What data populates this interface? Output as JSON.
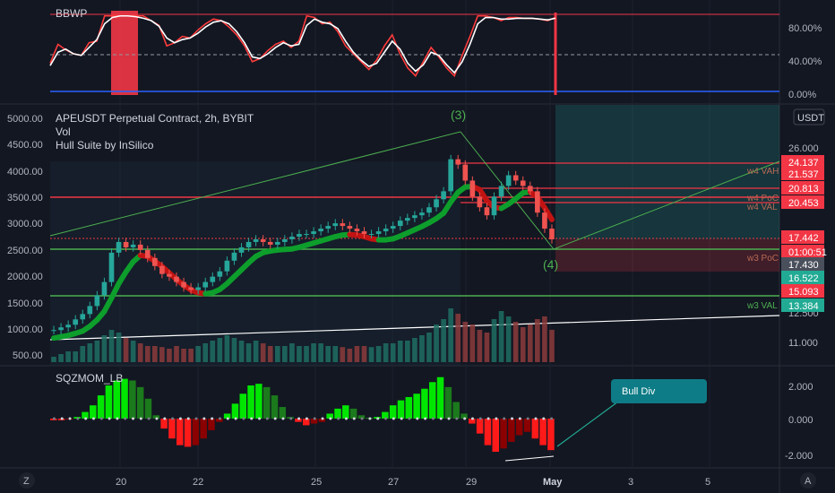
{
  "chart_data": [
    {
      "type": "line",
      "title": "BBWP",
      "y_ticks": [
        "80.00%",
        "40.00%",
        "0.00%"
      ],
      "ylim": [
        0,
        100
      ],
      "series": [
        {
          "color": "#ff3b3b",
          "values": [
            38,
            62,
            55,
            50,
            48,
            64,
            66,
            98,
            98,
            98,
            98,
            98,
            98,
            92,
            86,
            60,
            64,
            72,
            70,
            80,
            88,
            94,
            92,
            84,
            74,
            60,
            40,
            44,
            54,
            62,
            66,
            58,
            66,
            98,
            96,
            88,
            90,
            78,
            60,
            50,
            40,
            30,
            42,
            60,
            74,
            50,
            32,
            22,
            40,
            58,
            46,
            32,
            22,
            48,
            72,
            98,
            98,
            96,
            92,
            96,
            96,
            95,
            95,
            94,
            92,
            96
          ]
        },
        {
          "color": "#ffffff",
          "values": [
            35,
            52,
            56,
            50,
            48,
            58,
            68,
            88,
            96,
            98,
            98,
            97,
            95,
            92,
            85,
            70,
            64,
            68,
            70,
            76,
            84,
            90,
            92,
            88,
            78,
            64,
            46,
            44,
            50,
            58,
            64,
            60,
            62,
            86,
            94,
            90,
            88,
            82,
            66,
            52,
            42,
            34,
            38,
            52,
            66,
            56,
            38,
            28,
            36,
            52,
            48,
            36,
            26,
            40,
            62,
            88,
            96,
            96,
            94,
            94,
            95,
            95,
            95,
            94,
            93,
            95
          ]
        }
      ]
    },
    {
      "type": "candlestick",
      "title": "APEUSDT Perpetual Contract, 2h, BYBIT",
      "indicators": [
        "Vol",
        "Hull Suite by InSilico"
      ],
      "left_axis_ticks": [
        "5000.00",
        "4500.00",
        "4000.00",
        "3500.00",
        "3000.00",
        "2500.00",
        "2000.00",
        "1500.00",
        "1000.00",
        "500.00"
      ],
      "right_axis_ticks": [
        "26.000",
        "12.500",
        "11.000"
      ],
      "currency": "USDT",
      "price_tags": [
        {
          "text": "24.137",
          "color": "#f23645"
        },
        {
          "text": "21.537",
          "color": "#f23645"
        },
        {
          "text": "20.813",
          "color": "#f23645"
        },
        {
          "text": "20.453",
          "color": "#f23645"
        },
        {
          "text": "17.442",
          "color": "#f23645"
        },
        {
          "text": "01:00:51",
          "color": "#f23645"
        },
        {
          "text": "17.430",
          "color": "#4a4f5c"
        },
        {
          "text": "16.522",
          "color": "#22ab94"
        },
        {
          "text": "15.093",
          "color": "#f23645"
        },
        {
          "text": "13.384",
          "color": "#22ab94"
        }
      ],
      "level_labels": [
        "w4 VAH",
        "w4 PoC",
        "w4 VAL",
        "w3 PoC",
        "w3 VAL"
      ],
      "wave_labels": [
        "(3)",
        "(4)"
      ],
      "closes": [
        1000,
        1050,
        1100,
        1200,
        1300,
        1450,
        1650,
        1900,
        2450,
        2650,
        2550,
        2600,
        2500,
        2350,
        2200,
        2050,
        2000,
        1900,
        1800,
        1750,
        1800,
        1900,
        2000,
        2100,
        2300,
        2450,
        2550,
        2650,
        2700,
        2650,
        2600,
        2650,
        2700,
        2750,
        2800,
        2800,
        2850,
        2900,
        2950,
        3000,
        2950,
        2900,
        2850,
        2800,
        2800,
        2850,
        2900,
        2950,
        3050,
        3100,
        3150,
        3200,
        3300,
        3450,
        3600,
        4200,
        4100,
        3800,
        3500,
        3300,
        3150,
        3500,
        3700,
        3900,
        3800,
        3700,
        3600,
        3200,
        2900,
        2700
      ],
      "volumes": [
        0.1,
        0.15,
        0.2,
        0.2,
        0.3,
        0.35,
        0.4,
        0.5,
        0.6,
        0.55,
        0.45,
        0.4,
        0.35,
        0.3,
        0.3,
        0.28,
        0.25,
        0.3,
        0.25,
        0.25,
        0.3,
        0.35,
        0.4,
        0.45,
        0.5,
        0.45,
        0.4,
        0.35,
        0.4,
        0.35,
        0.3,
        0.3,
        0.3,
        0.35,
        0.3,
        0.3,
        0.35,
        0.35,
        0.3,
        0.3,
        0.28,
        0.25,
        0.3,
        0.3,
        0.28,
        0.3,
        0.35,
        0.35,
        0.4,
        0.4,
        0.45,
        0.5,
        0.55,
        0.7,
        0.8,
        1.0,
        0.9,
        0.75,
        0.7,
        0.6,
        0.55,
        0.8,
        0.95,
        0.85,
        0.75,
        0.65,
        0.7,
        0.8,
        0.85,
        0.6
      ]
    },
    {
      "type": "bar",
      "title": "SQZMOM_LB",
      "y_ticks": [
        "2.000",
        "0.000",
        "-2.000"
      ],
      "ylim": [
        -2.5,
        2.5
      ],
      "values": [
        -0.1,
        -0.1,
        -0.05,
        0.1,
        0.4,
        0.8,
        1.4,
        2.0,
        2.3,
        2.4,
        2.3,
        1.9,
        1.2,
        0.2,
        -0.6,
        -1.2,
        -1.6,
        -1.7,
        -1.6,
        -1.2,
        -0.7,
        -0.2,
        0.3,
        0.9,
        1.5,
        2.0,
        2.1,
        1.9,
        1.4,
        0.7,
        0.1,
        -0.2,
        -0.4,
        -0.3,
        -0.2,
        0.3,
        0.6,
        0.8,
        0.6,
        0.2,
        0.05,
        0.1,
        0.4,
        0.8,
        1.1,
        1.3,
        1.5,
        1.8,
        2.2,
        2.5,
        1.9,
        1.0,
        0.3,
        -0.3,
        -0.9,
        -1.6,
        -2.0,
        -1.8,
        -1.4,
        -1.0,
        -0.8,
        -1.2,
        -1.6,
        -1.9
      ],
      "annotation": "Bull Div"
    }
  ],
  "x_labels": [
    "20",
    "22",
    "25",
    "27",
    "29",
    "May",
    "3",
    "5"
  ],
  "corner_left": "Z",
  "corner_right": "A"
}
